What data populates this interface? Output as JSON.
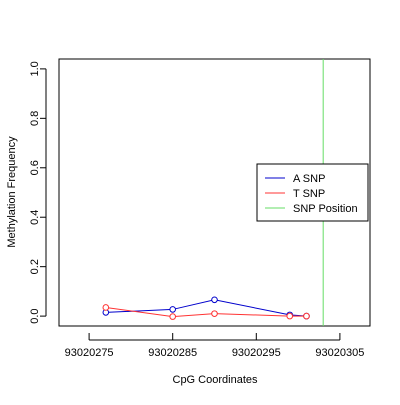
{
  "chart_data": {
    "type": "line",
    "title": "",
    "xlabel": "CpG Coordinates",
    "ylabel": "Methylation Frequency",
    "xlim": [
      93020271.4,
      93020308.6
    ],
    "ylim": [
      -0.04,
      1.04
    ],
    "x_ticks": [
      93020275,
      93020285,
      93020295,
      93020305
    ],
    "x_tick_labels": [
      "93020275",
      "93020285",
      "93020295",
      "93020305"
    ],
    "y_ticks": [
      0.0,
      0.2,
      0.4,
      0.6,
      0.8,
      1.0
    ],
    "y_tick_labels": [
      "0.0",
      "0.2",
      "0.4",
      "0.6",
      "0.8",
      "1.0"
    ],
    "series": [
      {
        "name": "A SNP",
        "color": "#0000cc",
        "x": [
          93020277,
          93020285,
          93020290,
          93020299,
          93020301
        ],
        "y": [
          0.015,
          0.027,
          0.066,
          0.005,
          0.0
        ]
      },
      {
        "name": "T SNP",
        "color": "#ff3333",
        "x": [
          93020277,
          93020285,
          93020290,
          93020299,
          93020301
        ],
        "y": [
          0.035,
          -0.002,
          0.01,
          0.0,
          0.0
        ]
      }
    ],
    "snp_position": {
      "name": "SNP Position",
      "color": "#66dd66",
      "x": 93020303
    },
    "legend": {
      "position": "right",
      "entries": [
        {
          "label": "A SNP",
          "color": "#0000cc"
        },
        {
          "label": "T SNP",
          "color": "#ff3333"
        },
        {
          "label": "SNP Position",
          "color": "#66dd66"
        }
      ]
    },
    "grid": false
  }
}
